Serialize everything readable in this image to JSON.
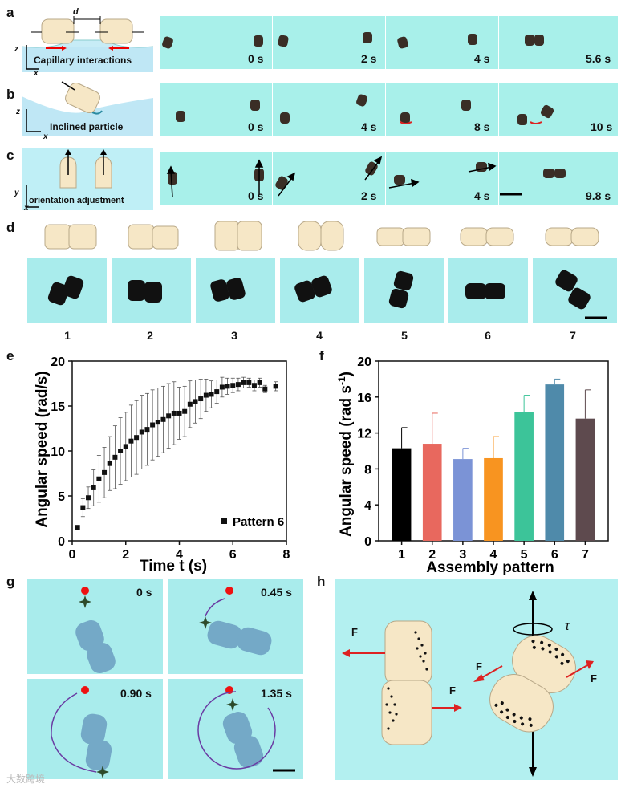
{
  "panels": {
    "a": "a",
    "b": "b",
    "c": "c",
    "d": "d",
    "e": "e",
    "f": "f",
    "g": "g",
    "h": "h"
  },
  "row_a": {
    "sketch_text": "Capillary interactions",
    "d_label": "d",
    "axis_z": "z",
    "axis_x": "x",
    "times": [
      "0 s",
      "2 s",
      "4 s",
      "5.6 s"
    ]
  },
  "row_b": {
    "sketch_text": "Inclined particle",
    "axis_z": "z",
    "axis_x": "x",
    "times": [
      "0 s",
      "4 s",
      "8 s",
      "10 s"
    ]
  },
  "row_c": {
    "sketch_text": "orientation adjustment",
    "axis_y": "y",
    "axis_x": "x",
    "times": [
      "0 s",
      "2 s",
      "4 s",
      "9.8 s"
    ]
  },
  "row_d": {
    "numbers": [
      "1",
      "2",
      "3",
      "4",
      "5",
      "6",
      "7"
    ]
  },
  "panel_e": {
    "legend": "Pattern 6"
  },
  "panel_g": {
    "times": [
      "0 s",
      "0.45 s",
      "0.90 s",
      "1.35 s"
    ]
  },
  "panel_h": {
    "force": "F",
    "torque": "τ"
  },
  "watermark": "大数跨境",
  "chart_data": [
    {
      "type": "scatter",
      "title": "",
      "xlabel": "Time t (s)",
      "ylabel": "Angular speed (rad/s)",
      "xlim": [
        0,
        8
      ],
      "ylim": [
        0,
        20
      ],
      "xticks": [
        "0",
        "2",
        "4",
        "6",
        "8"
      ],
      "yticks": [
        "0",
        "5",
        "10",
        "15",
        "20"
      ],
      "legend": "Pattern 6",
      "x": [
        0.2,
        0.4,
        0.6,
        0.8,
        1.0,
        1.2,
        1.4,
        1.6,
        1.8,
        2.0,
        2.2,
        2.4,
        2.6,
        2.8,
        3.0,
        3.2,
        3.4,
        3.6,
        3.8,
        4.0,
        4.2,
        4.4,
        4.6,
        4.8,
        5.0,
        5.2,
        5.4,
        5.6,
        5.8,
        6.0,
        6.2,
        6.4,
        6.6,
        6.8,
        7.0,
        7.2,
        7.6
      ],
      "y": [
        1.5,
        3.7,
        4.8,
        5.9,
        6.9,
        7.6,
        8.6,
        9.3,
        10.0,
        10.5,
        11.1,
        11.5,
        12.1,
        12.4,
        12.9,
        13.2,
        13.5,
        13.9,
        14.2,
        14.2,
        14.4,
        15.2,
        15.5,
        15.8,
        16.2,
        16.3,
        16.6,
        17.1,
        17.2,
        17.3,
        17.4,
        17.6,
        17.6,
        17.3,
        17.6,
        16.9,
        17.2
      ],
      "err": [
        0.2,
        1.0,
        1.2,
        2.0,
        2.6,
        2.8,
        3.0,
        3.5,
        3.7,
        3.8,
        4.0,
        4.1,
        4.1,
        4.0,
        3.9,
        3.8,
        3.7,
        3.6,
        3.5,
        2.9,
        2.8,
        2.6,
        2.4,
        2.2,
        1.8,
        1.5,
        1.3,
        1.1,
        0.9,
        0.8,
        0.7,
        0.6,
        0.5,
        0.6,
        0.5,
        0.4,
        0.5
      ]
    },
    {
      "type": "bar",
      "title": "",
      "xlabel": "Assembly pattern",
      "ylabel": "Angular speed (rad s-1)",
      "categories": [
        "1",
        "2",
        "3",
        "4",
        "5",
        "6",
        "7"
      ],
      "values": [
        10.3,
        10.8,
        9.1,
        9.2,
        14.3,
        17.4,
        13.6
      ],
      "err": [
        2.3,
        3.4,
        1.2,
        2.4,
        1.9,
        0.6,
        3.2
      ],
      "colors": [
        "#000000",
        "#e8685e",
        "#7b93d6",
        "#f89420",
        "#3cc499",
        "#4f8aaa",
        "#5e4a4e"
      ],
      "ylim": [
        0,
        20
      ],
      "yticks": [
        "0",
        "4",
        "8",
        "12",
        "16",
        "20"
      ]
    }
  ]
}
